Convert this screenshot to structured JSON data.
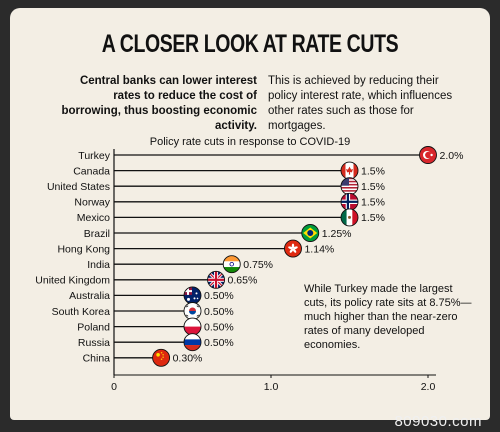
{
  "header": {
    "title": "A CLOSER LOOK AT RATE CUTS",
    "lead": "Central banks can lower interest rates to reduce the cost of borrowing, thus boosting economic activity.",
    "side": "This is achieved by reducing their policy interest rate, which influences other rates such as those for mortgages."
  },
  "chart_data": {
    "type": "bar",
    "title": "Policy rate cuts in response to COVID-19",
    "categories": [
      "Turkey",
      "Canada",
      "United States",
      "Norway",
      "Mexico",
      "Brazil",
      "Hong Kong",
      "India",
      "United Kingdom",
      "Australia",
      "South Korea",
      "Poland",
      "Russia",
      "China"
    ],
    "values": [
      2.0,
      1.5,
      1.5,
      1.5,
      1.5,
      1.25,
      1.14,
      0.75,
      0.65,
      0.5,
      0.5,
      0.5,
      0.5,
      0.3
    ],
    "value_labels": [
      "2.0%",
      "1.5%",
      "1.5%",
      "1.5%",
      "1.5%",
      "1.25%",
      "1.14%",
      "0.75%",
      "0.65%",
      "0.50%",
      "0.50%",
      "0.50%",
      "0.50%",
      "0.30%"
    ],
    "xlim": [
      0,
      2.0
    ],
    "xticks": [
      0,
      1.0,
      2.0
    ],
    "xtick_labels": [
      "0",
      "1.0",
      "2.0"
    ],
    "orientation": "horizontal",
    "style": "lollipop",
    "flag_icons": [
      "turkey-flag-icon",
      "canada-flag-icon",
      "us-flag-icon",
      "norway-flag-icon",
      "mexico-flag-icon",
      "brazil-flag-icon",
      "hongkong-flag-icon",
      "india-flag-icon",
      "uk-flag-icon",
      "australia-flag-icon",
      "south-korea-flag-icon",
      "poland-flag-icon",
      "russia-flag-icon",
      "china-flag-icon"
    ],
    "annotation": "While Turkey made the largest cuts, its policy rate sits at 8.75%— much higher than the near-zero rates of many developed economies."
  },
  "watermark": "809030.com",
  "colors": {
    "background": "#f3eee4",
    "frame": "#2b2b2b",
    "line": "#111111"
  }
}
